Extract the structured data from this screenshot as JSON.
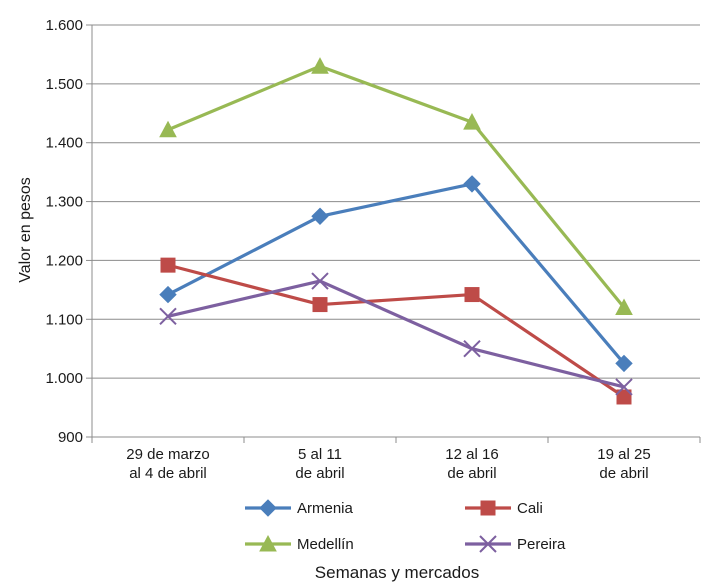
{
  "chart_data": {
    "type": "line",
    "xlabel": "Semanas y mercados",
    "ylabel": "Valor en pesos",
    "ylim": [
      900,
      1600
    ],
    "yticks": [
      900,
      1000,
      1100,
      1200,
      1300,
      1400,
      1500,
      1600
    ],
    "ytick_labels": [
      "900",
      "1.000",
      "1.100",
      "1.200",
      "1.300",
      "1.400",
      "1.500",
      "1.600"
    ],
    "categories": [
      [
        "29 de marzo",
        "al 4 de abril"
      ],
      [
        "5 al 11",
        "de abril"
      ],
      [
        "12 al 16",
        "de abril"
      ],
      [
        "19 al 25",
        "de abril"
      ]
    ],
    "grid": true,
    "legend_position": "bottom",
    "series": [
      {
        "name": "Armenia",
        "color": "#4a7ebb",
        "marker": "diamond",
        "values": [
          1142,
          1275,
          1330,
          1025
        ]
      },
      {
        "name": "Cali",
        "color": "#be4b48",
        "marker": "square",
        "values": [
          1192,
          1125,
          1142,
          968
        ]
      },
      {
        "name": "Medellín",
        "color": "#98b954",
        "marker": "triangle",
        "values": [
          1422,
          1530,
          1435,
          1120
        ]
      },
      {
        "name": "Pereira",
        "color": "#7d60a0",
        "marker": "x",
        "values": [
          1105,
          1165,
          1050,
          985
        ]
      }
    ]
  }
}
